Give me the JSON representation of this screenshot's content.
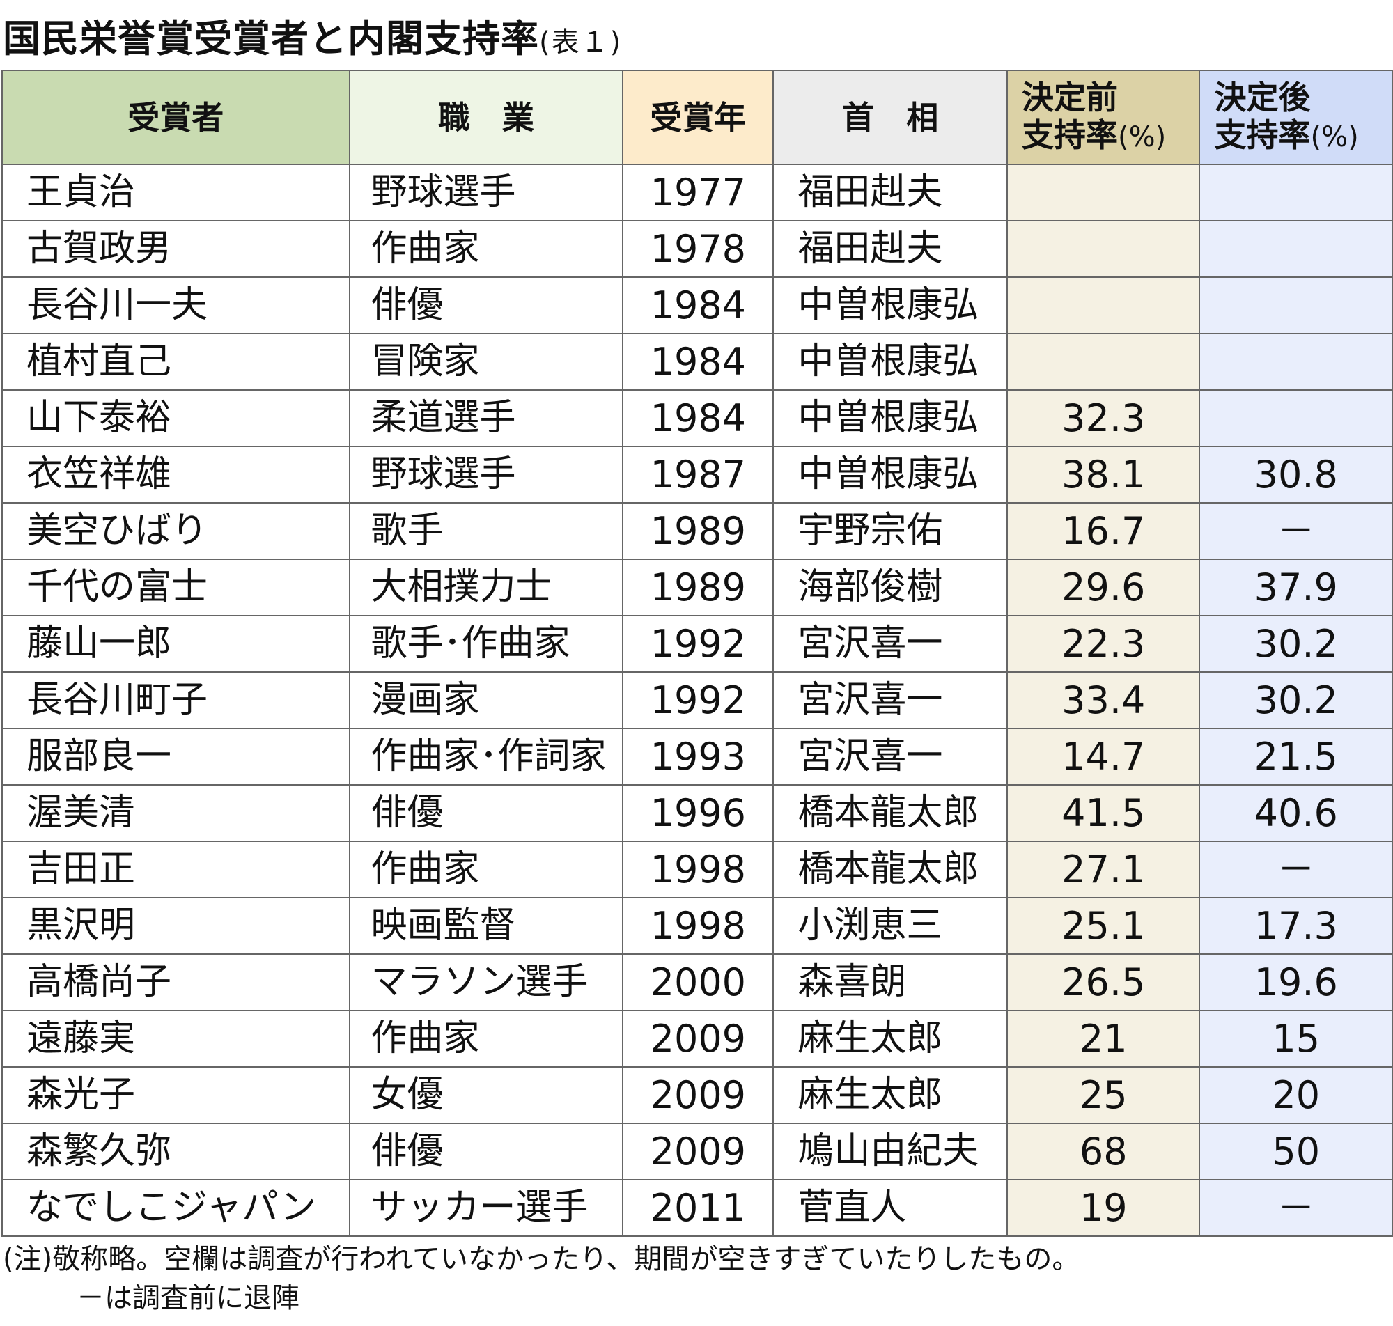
{
  "title": "国民栄誉賞受賞者と内閣支持率",
  "subtitle": "(表１)",
  "headers": {
    "name": "受賞者",
    "job": "職　業",
    "year": "受賞年",
    "pm": "首　相",
    "before_line1": "決定前",
    "before_line2": "支持率",
    "after_line1": "決定後",
    "after_line2": "支持率",
    "pct": "(%)"
  },
  "colors": {
    "name_header": "#c9dbb1",
    "job_header": "#eef5e5",
    "year_header": "#fdebcb",
    "pm_header": "#ececec",
    "before_header": "#dcd2a6",
    "after_header": "#d0dcf8",
    "before_cells": "#f5f1e3",
    "after_cells": "#e9eefc"
  },
  "chart_data": {
    "type": "table",
    "title": "国民栄誉賞受賞者と内閣支持率",
    "columns": [
      "受賞者",
      "職業",
      "受賞年",
      "首相",
      "決定前支持率(%)",
      "決定後支持率(%)"
    ],
    "rows": [
      {
        "name": "王貞治",
        "job": "野球選手",
        "year": "1977",
        "pm": "福田赳夫",
        "before": "",
        "after": ""
      },
      {
        "name": "古賀政男",
        "job": "作曲家",
        "year": "1978",
        "pm": "福田赳夫",
        "before": "",
        "after": ""
      },
      {
        "name": "長谷川一夫",
        "job": "俳優",
        "year": "1984",
        "pm": "中曽根康弘",
        "before": "",
        "after": ""
      },
      {
        "name": "植村直己",
        "job": "冒険家",
        "year": "1984",
        "pm": "中曽根康弘",
        "before": "",
        "after": ""
      },
      {
        "name": "山下泰裕",
        "job": "柔道選手",
        "year": "1984",
        "pm": "中曽根康弘",
        "before": "32.3",
        "after": ""
      },
      {
        "name": "衣笠祥雄",
        "job": "野球選手",
        "year": "1987",
        "pm": "中曽根康弘",
        "before": "38.1",
        "after": "30.8"
      },
      {
        "name": "美空ひばり",
        "job": "歌手",
        "year": "1989",
        "pm": "宇野宗佑",
        "before": "16.7",
        "after": "－"
      },
      {
        "name": "千代の富士",
        "job": "大相撲力士",
        "year": "1989",
        "pm": "海部俊樹",
        "before": "29.6",
        "after": "37.9"
      },
      {
        "name": "藤山一郎",
        "job": "歌手･作曲家",
        "year": "1992",
        "pm": "宮沢喜一",
        "before": "22.3",
        "after": "30.2"
      },
      {
        "name": "長谷川町子",
        "job": "漫画家",
        "year": "1992",
        "pm": "宮沢喜一",
        "before": "33.4",
        "after": "30.2"
      },
      {
        "name": "服部良一",
        "job": "作曲家･作詞家",
        "year": "1993",
        "pm": "宮沢喜一",
        "before": "14.7",
        "after": "21.5"
      },
      {
        "name": "渥美清",
        "job": "俳優",
        "year": "1996",
        "pm": "橋本龍太郎",
        "before": "41.5",
        "after": "40.6"
      },
      {
        "name": "吉田正",
        "job": "作曲家",
        "year": "1998",
        "pm": "橋本龍太郎",
        "before": "27.1",
        "after": "－"
      },
      {
        "name": "黒沢明",
        "job": "映画監督",
        "year": "1998",
        "pm": "小渕恵三",
        "before": "25.1",
        "after": "17.3"
      },
      {
        "name": "高橋尚子",
        "job": "マラソン選手",
        "year": "2000",
        "pm": "森喜朗",
        "before": "26.5",
        "after": "19.6"
      },
      {
        "name": "遠藤実",
        "job": "作曲家",
        "year": "2009",
        "pm": "麻生太郎",
        "before": "21",
        "after": "15"
      },
      {
        "name": "森光子",
        "job": "女優",
        "year": "2009",
        "pm": "麻生太郎",
        "before": "25",
        "after": "20"
      },
      {
        "name": "森繁久弥",
        "job": "俳優",
        "year": "2009",
        "pm": "鳩山由紀夫",
        "before": "68",
        "after": "50"
      },
      {
        "name": "なでしこジャパン",
        "job": "サッカー選手",
        "year": "2011",
        "pm": "菅直人",
        "before": "19",
        "after": "－"
      }
    ]
  },
  "notes": {
    "line1": "(注)敬称略。空欄は調査が行われていなかったり、期間が空きすぎていたりしたもの。",
    "line2": "－は調査前に退陣"
  }
}
